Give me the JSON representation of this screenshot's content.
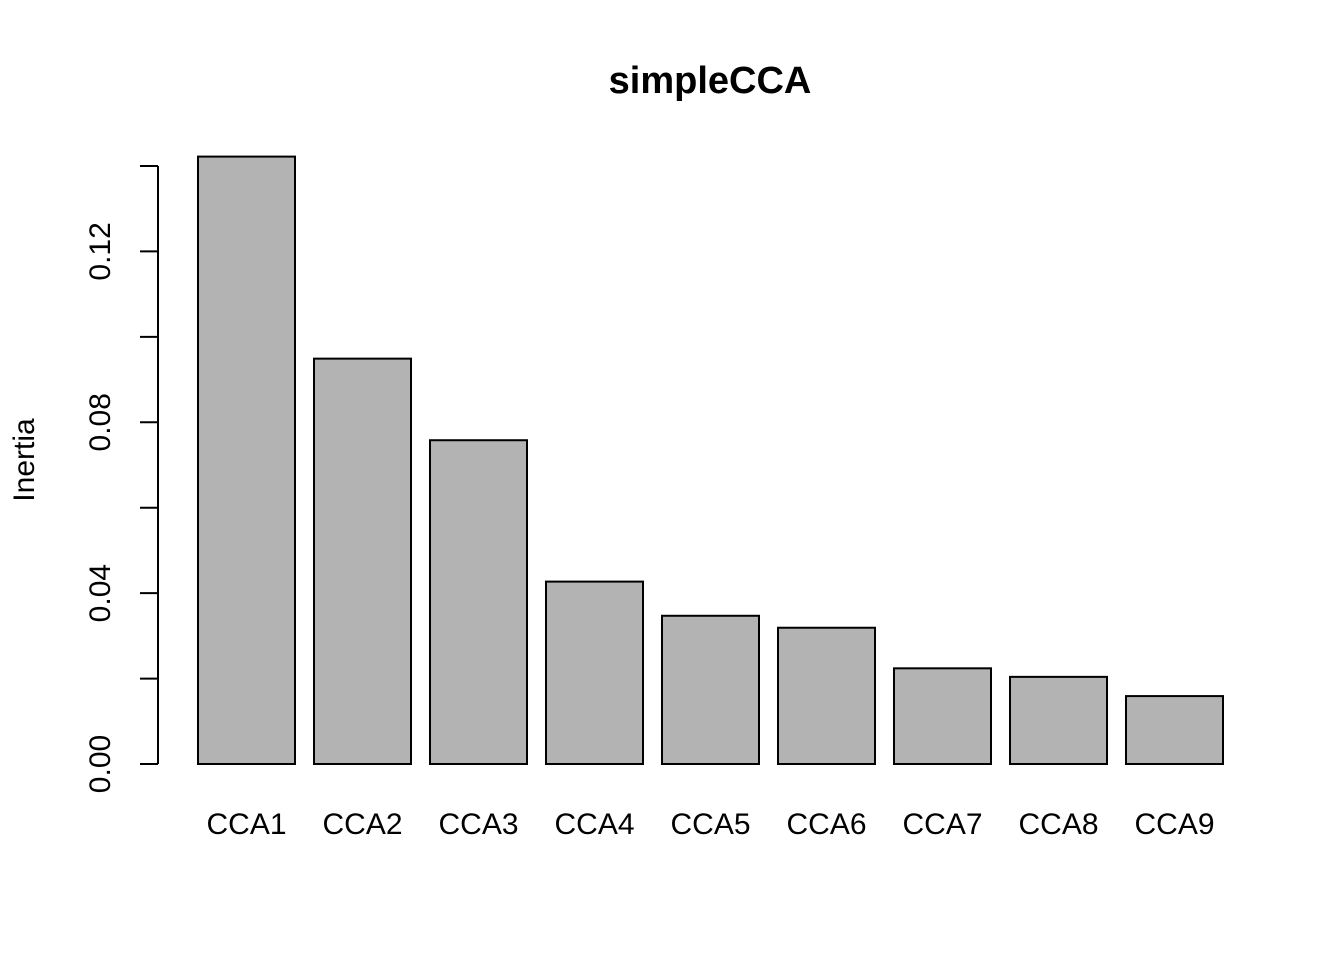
{
  "chart_data": {
    "type": "bar",
    "title": "simpleCCA",
    "xlabel": "",
    "ylabel": "Inertia",
    "categories": [
      "CCA1",
      "CCA2",
      "CCA3",
      "CCA4",
      "CCA5",
      "CCA6",
      "CCA7",
      "CCA8",
      "CCA9"
    ],
    "values": [
      0.1422,
      0.0949,
      0.0758,
      0.0427,
      0.0347,
      0.0319,
      0.0224,
      0.0204,
      0.0159
    ],
    "ylim": [
      0,
      0.14
    ],
    "yticks": [
      0.0,
      0.02,
      0.04,
      0.06,
      0.08,
      0.1,
      0.12,
      0.14
    ],
    "ytick_labels": [
      "0.00",
      "",
      "0.04",
      "",
      "0.08",
      "",
      "0.12",
      ""
    ],
    "grid": false,
    "bar_color": "#b3b3b3",
    "bar_border_color": "#000000"
  }
}
